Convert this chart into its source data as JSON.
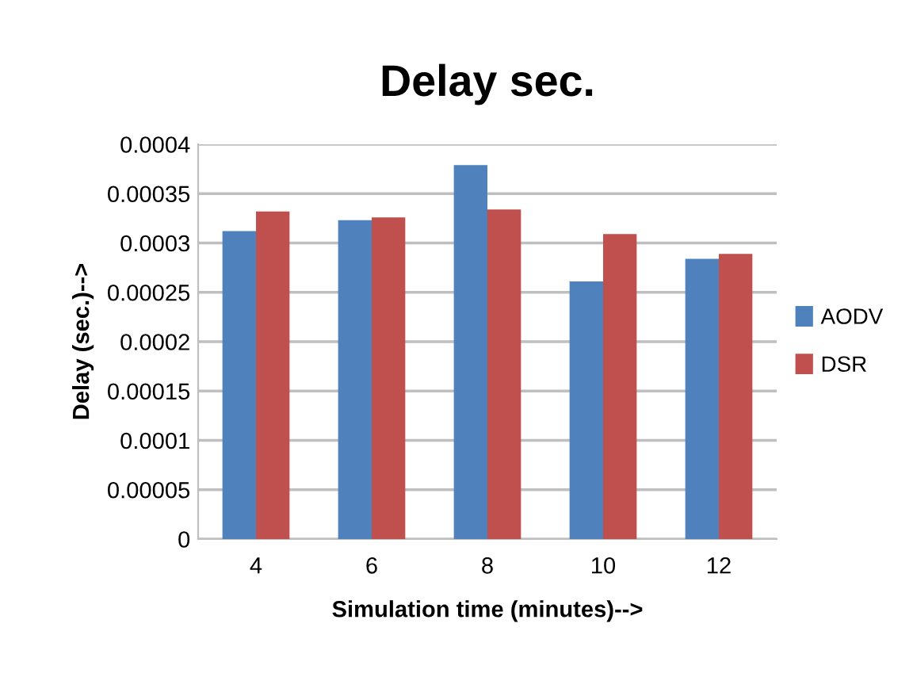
{
  "chart_data": {
    "type": "bar",
    "title": "Delay sec.",
    "xlabel": "Simulation time (minutes)-->",
    "ylabel": "Delay (sec.)-->",
    "categories": [
      "4",
      "6",
      "8",
      "10",
      "12"
    ],
    "series": [
      {
        "name": "AODV",
        "color": "#4f81bd",
        "values": [
          0.000312,
          0.000323,
          0.000379,
          0.000261,
          0.000284
        ]
      },
      {
        "name": "DSR",
        "color": "#c0504d",
        "values": [
          0.000332,
          0.000326,
          0.000334,
          0.000309,
          0.000289
        ]
      }
    ],
    "ylim": [
      0,
      0.0004
    ],
    "yticks": [
      0,
      {
        "value": 5e-05,
        "label": "0.00005"
      },
      {
        "value": 0.0001,
        "label": "0.0001"
      },
      {
        "value": 0.00015,
        "label": "0.00015"
      },
      {
        "value": 0.0002,
        "label": "0.0002"
      },
      {
        "value": 0.00025,
        "label": "0.00025"
      },
      {
        "value": 0.0003,
        "label": "0.0003"
      },
      {
        "value": 0.00035,
        "label": "0.00035"
      },
      {
        "value": 0.0004,
        "label": "0.0004"
      }
    ],
    "grid": "y",
    "legend": "right"
  }
}
